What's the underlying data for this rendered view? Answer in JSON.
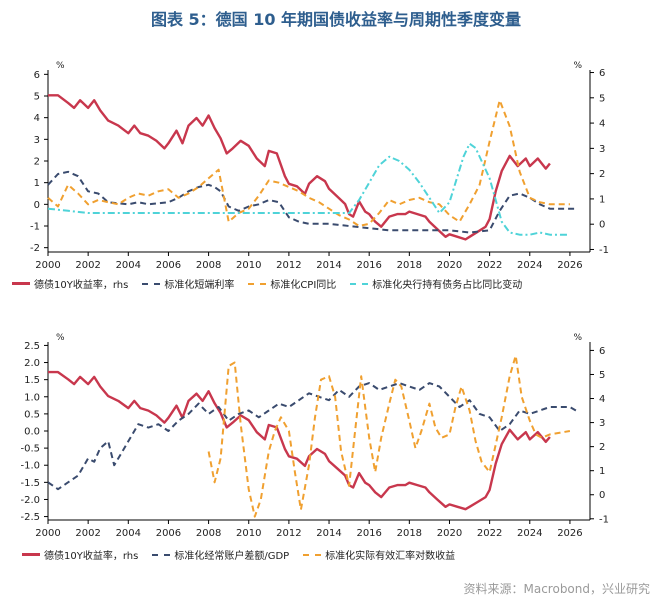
{
  "title": "图表 5：德国 10 年期国债收益率与周期性季度变量",
  "source": "资料来源：Macrobond，兴业研究",
  "colors": {
    "red": "#c8374d",
    "navy": "#3a4b6e",
    "orange": "#f0a030",
    "cyan": "#4fd3d8"
  },
  "chart_data": [
    {
      "type": "line",
      "unit_left": "%",
      "unit_right": "%",
      "xlim": [
        2000,
        2027
      ],
      "x_ticks": [
        "2000",
        "2002",
        "2004",
        "2006",
        "2008",
        "2010",
        "2012",
        "2014",
        "2016",
        "2018",
        "2020",
        "2022",
        "2024",
        "2026"
      ],
      "ylim_left": [
        -2.2,
        6.2
      ],
      "y_ticks_left": [
        "6",
        "5",
        "4",
        "3",
        "2",
        "1",
        "0",
        "-1",
        "-2"
      ],
      "ylim_right": [
        -1.1,
        6.1
      ],
      "y_ticks_right": [
        "6",
        "5",
        "4",
        "3",
        "2",
        "1",
        "0",
        "-1"
      ],
      "series": [
        {
          "name": "德债10Y收益率，rhs",
          "axis": "right",
          "color": "red",
          "style": "solid",
          "x": [
            2000,
            2000.5,
            2001,
            2001.3,
            2001.6,
            2002,
            2002.3,
            2002.6,
            2003,
            2003.5,
            2004,
            2004.3,
            2004.6,
            2005,
            2005.4,
            2005.8,
            2006,
            2006.4,
            2006.7,
            2007,
            2007.4,
            2007.7,
            2008,
            2008.3,
            2008.6,
            2008.9,
            2009.2,
            2009.6,
            2010,
            2010.4,
            2010.8,
            2011,
            2011.4,
            2011.8,
            2012,
            2012.4,
            2012.8,
            2013,
            2013.4,
            2013.8,
            2014,
            2014.4,
            2014.8,
            2015,
            2015.2,
            2015.5,
            2015.8,
            2016,
            2016.3,
            2016.6,
            2017,
            2017.4,
            2017.8,
            2018,
            2018.4,
            2018.8,
            2019,
            2019.4,
            2019.8,
            2020,
            2020.4,
            2020.8,
            2021,
            2021.4,
            2021.8,
            2022,
            2022.3,
            2022.6,
            2023,
            2023.4,
            2023.8,
            2024,
            2024.4,
            2024.8,
            2025
          ],
          "y": [
            5.1,
            5.1,
            4.8,
            4.6,
            4.9,
            4.6,
            4.9,
            4.5,
            4.1,
            3.9,
            3.6,
            3.9,
            3.6,
            3.5,
            3.3,
            3.0,
            3.2,
            3.7,
            3.2,
            3.9,
            4.2,
            3.9,
            4.3,
            3.8,
            3.4,
            2.8,
            3.0,
            3.3,
            3.1,
            2.6,
            2.3,
            2.9,
            2.8,
            1.9,
            1.6,
            1.5,
            1.2,
            1.6,
            1.9,
            1.7,
            1.4,
            1.1,
            0.8,
            0.4,
            0.3,
            0.9,
            0.5,
            0.4,
            0.1,
            -0.1,
            0.3,
            0.4,
            0.4,
            0.5,
            0.4,
            0.3,
            0.1,
            -0.2,
            -0.5,
            -0.4,
            -0.5,
            -0.6,
            -0.5,
            -0.3,
            -0.1,
            0.2,
            1.3,
            2.1,
            2.7,
            2.3,
            2.6,
            2.3,
            2.6,
            2.2,
            2.4
          ]
        },
        {
          "name": "标准化短端利率",
          "axis": "left",
          "color": "navy",
          "style": "dash",
          "x": [
            2000,
            2000.5,
            2001,
            2001.5,
            2002,
            2002.5,
            2003,
            2003.5,
            2004,
            2004.5,
            2005,
            2005.5,
            2006,
            2006.5,
            2007,
            2007.5,
            2008,
            2008.3,
            2008.6,
            2009,
            2009.5,
            2010,
            2010.5,
            2011,
            2011.5,
            2012,
            2012.5,
            2013,
            2014,
            2015,
            2016,
            2017,
            2018,
            2019,
            2020,
            2021,
            2022,
            2022.5,
            2023,
            2023.5,
            2024,
            2024.5,
            2025,
            2026,
            2026.3
          ],
          "y": [
            0.9,
            1.4,
            1.5,
            1.3,
            0.6,
            0.5,
            0.1,
            0.05,
            0.0,
            0.1,
            0.0,
            0.05,
            0.1,
            0.3,
            0.6,
            0.8,
            0.9,
            0.8,
            0.6,
            -0.1,
            -0.3,
            -0.1,
            0.0,
            0.2,
            0.1,
            -0.6,
            -0.8,
            -0.9,
            -0.9,
            -1.0,
            -1.1,
            -1.2,
            -1.2,
            -1.2,
            -1.2,
            -1.3,
            -1.2,
            -0.3,
            0.4,
            0.5,
            0.3,
            0.0,
            -0.2,
            -0.2,
            -0.2
          ]
        },
        {
          "name": "标准化CPI同比",
          "axis": "left",
          "color": "orange",
          "style": "dash",
          "x": [
            2000,
            2000.5,
            2001,
            2001.5,
            2002,
            2002.5,
            2003,
            2003.5,
            2004,
            2004.5,
            2005,
            2005.5,
            2006,
            2006.5,
            2007,
            2007.5,
            2008,
            2008.5,
            2009,
            2009.5,
            2010,
            2010.5,
            2011,
            2011.5,
            2012,
            2012.5,
            2013,
            2013.5,
            2014,
            2014.5,
            2015,
            2015.5,
            2016,
            2016.5,
            2017,
            2017.5,
            2018,
            2018.5,
            2019,
            2019.5,
            2020,
            2020.5,
            2021,
            2021.5,
            2022,
            2022.5,
            2023,
            2023.5,
            2024,
            2024.5,
            2025,
            2026
          ],
          "y": [
            0.3,
            -0.1,
            0.9,
            0.5,
            0.0,
            0.2,
            0.1,
            0.0,
            0.3,
            0.5,
            0.4,
            0.6,
            0.7,
            0.3,
            0.5,
            0.8,
            1.2,
            1.6,
            -0.8,
            -0.4,
            -0.2,
            0.4,
            1.1,
            1.0,
            0.8,
            0.6,
            0.3,
            0.1,
            -0.2,
            -0.5,
            -0.7,
            -1.0,
            -0.9,
            -0.4,
            0.2,
            0.0,
            0.2,
            0.3,
            0.1,
            0.0,
            -0.5,
            -0.8,
            0.0,
            0.9,
            2.9,
            4.8,
            3.6,
            1.5,
            0.3,
            0.1,
            0.0,
            0.0
          ]
        },
        {
          "name": "标准化央行持有债务占比同比变动",
          "axis": "left",
          "color": "cyan",
          "style": "dashdot",
          "x": [
            2000,
            2001,
            2002,
            2003,
            2004,
            2005,
            2006,
            2007,
            2008,
            2009,
            2010,
            2011,
            2012,
            2013,
            2014,
            2015,
            2015.5,
            2016,
            2016.5,
            2017,
            2017.5,
            2018,
            2018.5,
            2019,
            2019.5,
            2020,
            2020.3,
            2020.7,
            2021,
            2021.3,
            2021.6,
            2022,
            2022.3,
            2022.6,
            2023,
            2023.5,
            2024,
            2024.5,
            2025,
            2026
          ],
          "y": [
            -0.2,
            -0.3,
            -0.4,
            -0.4,
            -0.4,
            -0.4,
            -0.4,
            -0.4,
            -0.4,
            -0.4,
            -0.4,
            -0.4,
            -0.4,
            -0.4,
            -0.4,
            -0.4,
            0.2,
            1.0,
            1.8,
            2.2,
            2.0,
            1.6,
            1.0,
            0.3,
            -0.4,
            0.1,
            1.0,
            2.2,
            2.8,
            2.6,
            2.0,
            1.2,
            0.2,
            -0.8,
            -1.3,
            -1.4,
            -1.4,
            -1.3,
            -1.4,
            -1.4
          ]
        }
      ],
      "legend_position": "bottom"
    },
    {
      "type": "line",
      "unit_left": "%",
      "unit_right": "%",
      "xlim": [
        2000,
        2027
      ],
      "x_ticks": [
        "2000",
        "2002",
        "2004",
        "2006",
        "2008",
        "2010",
        "2012",
        "2014",
        "2016",
        "2018",
        "2020",
        "2022",
        "2024",
        "2026"
      ],
      "ylim_left": [
        -2.6,
        2.6
      ],
      "y_ticks_left": [
        "2.5",
        "2.0",
        "1.5",
        "1.0",
        "0.5",
        "0.0",
        "-0.5",
        "-1.0",
        "-1.5",
        "-2.0",
        "-2.5"
      ],
      "ylim_right": [
        -1.05,
        6.35
      ],
      "y_ticks_right": [
        "6",
        "5",
        "4",
        "3",
        "2",
        "1",
        "0",
        "-1"
      ],
      "series": [
        {
          "name": "德债10Y收益率，rhs",
          "axis": "right",
          "color": "red",
          "style": "solid",
          "x": [
            2000,
            2000.5,
            2001,
            2001.3,
            2001.6,
            2002,
            2002.3,
            2002.6,
            2003,
            2003.5,
            2004,
            2004.3,
            2004.6,
            2005,
            2005.4,
            2005.8,
            2006,
            2006.4,
            2006.7,
            2007,
            2007.4,
            2007.7,
            2008,
            2008.3,
            2008.6,
            2008.9,
            2009.2,
            2009.6,
            2010,
            2010.4,
            2010.8,
            2011,
            2011.4,
            2011.8,
            2012,
            2012.4,
            2012.8,
            2013,
            2013.4,
            2013.8,
            2014,
            2014.4,
            2014.8,
            2015,
            2015.2,
            2015.5,
            2015.8,
            2016,
            2016.3,
            2016.6,
            2017,
            2017.4,
            2017.8,
            2018,
            2018.4,
            2018.8,
            2019,
            2019.4,
            2019.8,
            2020,
            2020.4,
            2020.8,
            2021,
            2021.4,
            2021.8,
            2022,
            2022.3,
            2022.6,
            2023,
            2023.4,
            2023.8,
            2024,
            2024.4,
            2024.8,
            2025
          ],
          "y": [
            5.1,
            5.1,
            4.8,
            4.6,
            4.9,
            4.6,
            4.9,
            4.5,
            4.1,
            3.9,
            3.6,
            3.9,
            3.6,
            3.5,
            3.3,
            3.0,
            3.2,
            3.7,
            3.2,
            3.9,
            4.2,
            3.9,
            4.3,
            3.8,
            3.4,
            2.8,
            3.0,
            3.3,
            3.1,
            2.6,
            2.3,
            2.9,
            2.8,
            1.9,
            1.6,
            1.5,
            1.2,
            1.6,
            1.9,
            1.7,
            1.4,
            1.1,
            0.8,
            0.4,
            0.3,
            0.9,
            0.5,
            0.4,
            0.1,
            -0.1,
            0.3,
            0.4,
            0.4,
            0.5,
            0.4,
            0.3,
            0.1,
            -0.2,
            -0.5,
            -0.4,
            -0.5,
            -0.6,
            -0.5,
            -0.3,
            -0.1,
            0.2,
            1.3,
            2.1,
            2.7,
            2.3,
            2.6,
            2.3,
            2.6,
            2.2,
            2.4
          ]
        },
        {
          "name": "标准化经常账户差额/GDP",
          "axis": "left",
          "color": "navy",
          "style": "dash",
          "x": [
            2000,
            2000.5,
            2001,
            2001.5,
            2002,
            2002.3,
            2002.6,
            2003,
            2003.3,
            2003.6,
            2004,
            2004.5,
            2005,
            2005.5,
            2006,
            2006.5,
            2007,
            2007.5,
            2008,
            2008.5,
            2009,
            2009.5,
            2010,
            2010.5,
            2011,
            2011.5,
            2012,
            2012.5,
            2013,
            2013.5,
            2014,
            2014.5,
            2015,
            2015.5,
            2016,
            2016.5,
            2017,
            2017.5,
            2018,
            2018.5,
            2019,
            2019.5,
            2020,
            2020.5,
            2021,
            2021.5,
            2022,
            2022.5,
            2023,
            2023.5,
            2024,
            2024.5,
            2025,
            2026,
            2026.3
          ],
          "y": [
            -1.5,
            -1.7,
            -1.5,
            -1.3,
            -0.8,
            -0.9,
            -0.5,
            -0.3,
            -1.0,
            -0.7,
            -0.3,
            0.2,
            0.1,
            0.2,
            0.0,
            0.3,
            0.5,
            0.8,
            0.5,
            0.7,
            0.3,
            0.5,
            0.6,
            0.4,
            0.6,
            0.8,
            0.7,
            0.9,
            1.1,
            1.0,
            0.9,
            1.2,
            1.0,
            1.3,
            1.4,
            1.2,
            1.3,
            1.4,
            1.3,
            1.2,
            1.4,
            1.3,
            1.0,
            0.7,
            0.9,
            0.5,
            0.4,
            0.0,
            0.2,
            0.6,
            0.5,
            0.6,
            0.7,
            0.7,
            0.6
          ]
        },
        {
          "name": "标准化实际有效汇率对数收益",
          "axis": "left",
          "color": "orange",
          "style": "dash",
          "x": [
            2008,
            2008.3,
            2008.6,
            2009,
            2009.3,
            2009.6,
            2010,
            2010.3,
            2010.6,
            2011,
            2011.3,
            2011.6,
            2012,
            2012.3,
            2012.6,
            2013,
            2013.3,
            2013.6,
            2014,
            2014.3,
            2014.6,
            2015,
            2015.3,
            2015.6,
            2016,
            2016.3,
            2016.6,
            2017,
            2017.3,
            2017.6,
            2018,
            2018.3,
            2018.6,
            2019,
            2019.3,
            2019.6,
            2020,
            2020.3,
            2020.6,
            2021,
            2021.3,
            2021.6,
            2022,
            2022.3,
            2022.6,
            2023,
            2023.3,
            2023.6,
            2024,
            2024.3,
            2024.6,
            2025,
            2026
          ],
          "y": [
            -0.6,
            -1.5,
            -0.8,
            1.9,
            2.0,
            0.2,
            -1.7,
            -2.5,
            -2.0,
            -0.6,
            0.0,
            0.4,
            0.0,
            -1.2,
            -2.3,
            -1.0,
            0.4,
            1.5,
            1.6,
            1.0,
            -0.6,
            -1.6,
            0.0,
            1.6,
            -0.2,
            -1.2,
            -0.2,
            0.8,
            1.5,
            1.3,
            0.3,
            -0.5,
            0.0,
            0.8,
            0.1,
            -0.2,
            -0.1,
            0.7,
            1.3,
            0.6,
            -0.3,
            -0.9,
            -1.2,
            -0.4,
            0.4,
            1.6,
            2.2,
            1.0,
            0.3,
            -0.1,
            -0.2,
            -0.1,
            0.0
          ]
        }
      ],
      "legend_position": "bottom"
    }
  ]
}
